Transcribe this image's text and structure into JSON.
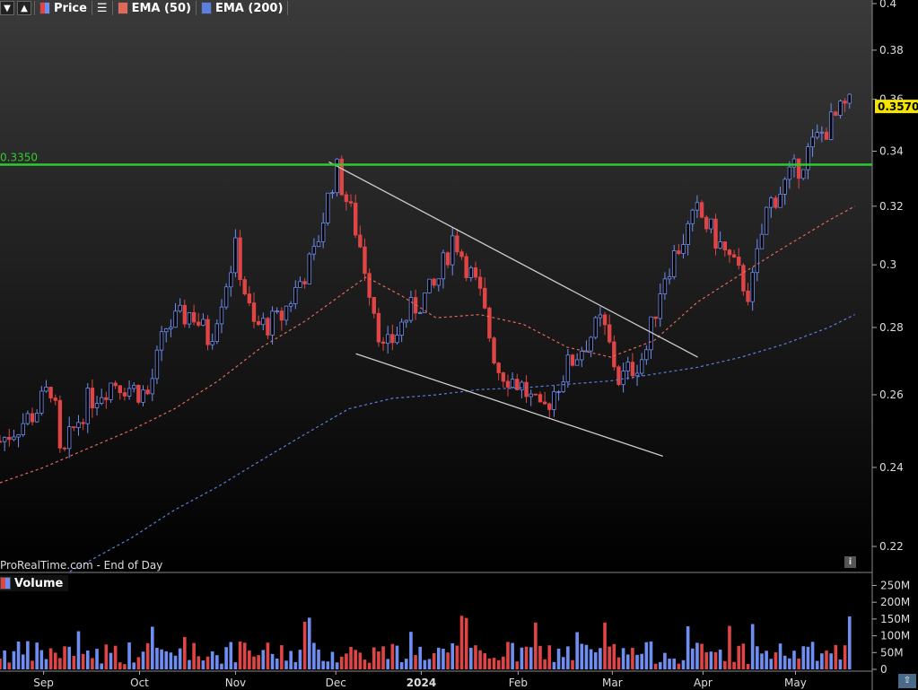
{
  "toolbar": {
    "price_label": "Price",
    "ema50_label": "EMA (50)",
    "ema200_label": "EMA (200)"
  },
  "volume_label": "Volume",
  "source_text": "ProRealTime.com - End of Day",
  "resistance_label": "0.3350",
  "last_price_label": "0.3570",
  "colors": {
    "up": "#6f8ef2",
    "down": "#e04545",
    "ema50": "#e06a5a",
    "ema200": "#5a7fe0",
    "resistance": "#2ecc2e",
    "trendline": "#cccccc",
    "last_badge": "#f5e400"
  },
  "chart_data": {
    "type": "candlestick",
    "x_ticks": [
      "Sep",
      "Oct",
      "Nov",
      "Dec",
      "2024",
      "Feb",
      "Mar",
      "Apr",
      "May"
    ],
    "price_ticks": [
      "0.4",
      "0.38",
      "0.36",
      "0.34",
      "0.32",
      "0.3",
      "0.28",
      "0.26",
      "0.24",
      "0.22"
    ],
    "volume_ticks": [
      "250M",
      "200M",
      "150M",
      "100M",
      "50M",
      "0"
    ],
    "price_range": [
      0.214,
      0.4
    ],
    "volume_range": [
      0,
      270
    ],
    "volume_unit": "M",
    "resistance": 0.335,
    "last_price": 0.357,
    "ema50": [
      [
        0,
        0.236
      ],
      [
        0.05,
        0.24
      ],
      [
        0.1,
        0.245
      ],
      [
        0.15,
        0.25
      ],
      [
        0.2,
        0.256
      ],
      [
        0.25,
        0.264
      ],
      [
        0.3,
        0.274
      ],
      [
        0.35,
        0.282
      ],
      [
        0.4,
        0.292
      ],
      [
        0.42,
        0.296
      ],
      [
        0.46,
        0.29
      ],
      [
        0.5,
        0.283
      ],
      [
        0.55,
        0.284
      ],
      [
        0.6,
        0.281
      ],
      [
        0.65,
        0.274
      ],
      [
        0.7,
        0.271
      ],
      [
        0.75,
        0.276
      ],
      [
        0.8,
        0.288
      ],
      [
        0.85,
        0.297
      ],
      [
        0.9,
        0.306
      ],
      [
        0.95,
        0.315
      ],
      [
        0.98,
        0.32
      ]
    ],
    "ema200": [
      [
        0.08,
        0.214
      ],
      [
        0.15,
        0.222
      ],
      [
        0.2,
        0.229
      ],
      [
        0.25,
        0.235
      ],
      [
        0.3,
        0.242
      ],
      [
        0.35,
        0.249
      ],
      [
        0.4,
        0.256
      ],
      [
        0.45,
        0.259
      ],
      [
        0.5,
        0.26
      ],
      [
        0.55,
        0.2615
      ],
      [
        0.6,
        0.262
      ],
      [
        0.65,
        0.263
      ],
      [
        0.7,
        0.264
      ],
      [
        0.75,
        0.266
      ],
      [
        0.8,
        0.268
      ],
      [
        0.85,
        0.271
      ],
      [
        0.9,
        0.275
      ],
      [
        0.95,
        0.28
      ],
      [
        0.98,
        0.284
      ]
    ],
    "trendline_upper": [
      [
        0.377,
        0.336
      ],
      [
        0.8,
        0.271
      ]
    ],
    "trendline_lower": [
      [
        0.408,
        0.272
      ],
      [
        0.76,
        0.243
      ]
    ]
  }
}
